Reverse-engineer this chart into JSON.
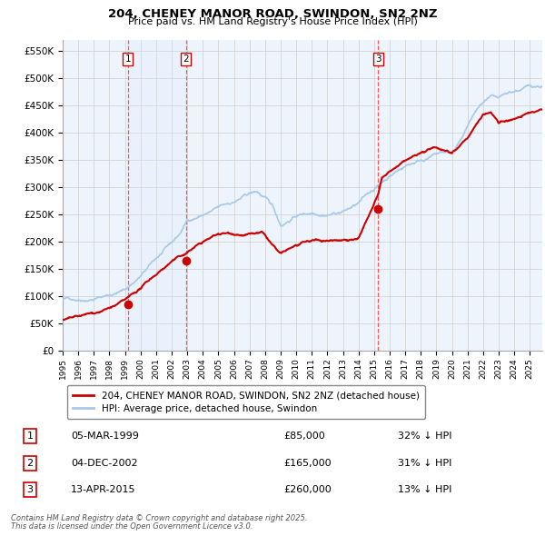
{
  "title": "204, CHENEY MANOR ROAD, SWINDON, SN2 2NZ",
  "subtitle": "Price paid vs. HM Land Registry's House Price Index (HPI)",
  "yticks": [
    0,
    50000,
    100000,
    150000,
    200000,
    250000,
    300000,
    350000,
    400000,
    450000,
    500000,
    550000
  ],
  "ylim": [
    0,
    570000
  ],
  "xlim_start": 1995.0,
  "xlim_end": 2025.8,
  "sale_dates": [
    1999.18,
    2002.92,
    2015.27
  ],
  "sale_prices": [
    85000,
    165000,
    260000
  ],
  "sale_labels": [
    "1",
    "2",
    "3"
  ],
  "sale_info": [
    {
      "label": "1",
      "date": "05-MAR-1999",
      "price": "£85,000",
      "hpi": "32% ↓ HPI"
    },
    {
      "label": "2",
      "date": "04-DEC-2002",
      "price": "£165,000",
      "hpi": "31% ↓ HPI"
    },
    {
      "label": "3",
      "date": "13-APR-2015",
      "price": "£260,000",
      "hpi": "13% ↓ HPI"
    }
  ],
  "hpi_color": "#a8c8e8",
  "price_color": "#cc0000",
  "sale_region_color": "#ddeeff",
  "vline_color": "#ff5555",
  "grid_color": "#cccccc",
  "chart_bg": "#eef4fb",
  "legend_house": "204, CHENEY MANOR ROAD, SWINDON, SN2 2NZ (detached house)",
  "legend_hpi": "HPI: Average price, detached house, Swindon",
  "footnote1": "Contains HM Land Registry data © Crown copyright and database right 2025.",
  "footnote2": "This data is licensed under the Open Government Licence v3.0."
}
